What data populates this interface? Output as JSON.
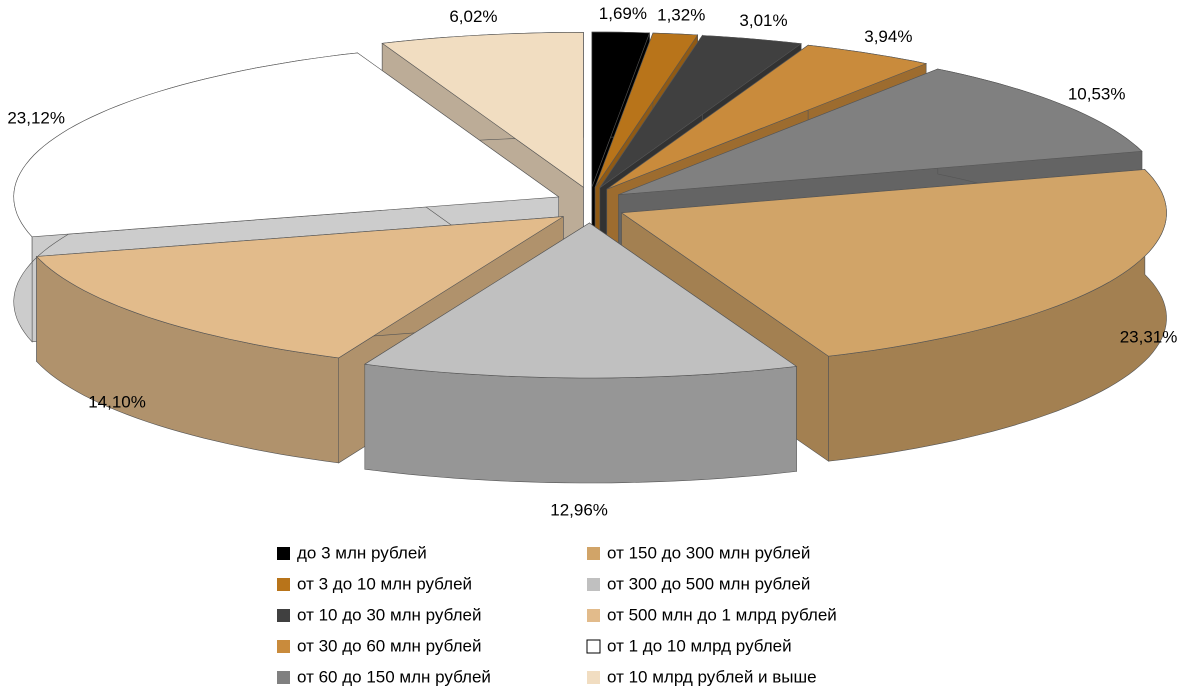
{
  "chart_data": {
    "type": "pie",
    "categories": [
      "до 3 млн рублей",
      "от 3 до 10 млн рублей",
      "от 10 до 30 млн рублей",
      "от 30 до 60 млн рублей",
      "от 60 до 150 млн рублей",
      "от 150 до 300 млн рублей",
      "от 300 до 500 млн рублей",
      "от 500 млн до 1 млрд рублей",
      "от 1 до 10 млрд рублей",
      "от 10 млрд рублей и выше"
    ],
    "values": [
      1.69,
      1.32,
      3.01,
      3.94,
      10.53,
      23.31,
      12.96,
      14.1,
      23.12,
      6.02
    ],
    "value_labels": [
      "1,69%",
      "1,32%",
      "3,01%",
      "3,94%",
      "10,53%",
      "23,31%",
      "12,96%",
      "14,10%",
      "23,12%",
      "6,02%"
    ],
    "colors": [
      "#000000",
      "#b8741a",
      "#404040",
      "#c98b3c",
      "#808080",
      "#d1a468",
      "#c0c0c0",
      "#e2bb8b",
      "#ffffff",
      "#f1ddc1"
    ],
    "legend": "bottom"
  }
}
